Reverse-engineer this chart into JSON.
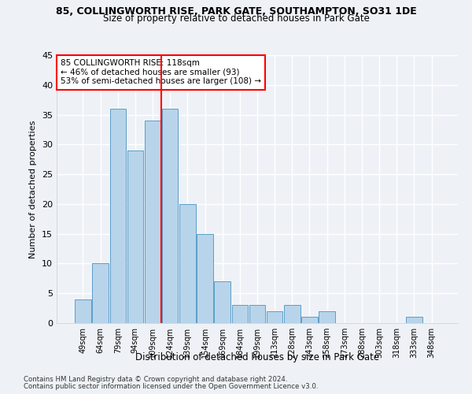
{
  "title1": "85, COLLINGWORTH RISE, PARK GATE, SOUTHAMPTON, SO31 1DE",
  "title2": "Size of property relative to detached houses in Park Gate",
  "xlabel": "Distribution of detached houses by size in Park Gate",
  "ylabel": "Number of detached properties",
  "categories": [
    "49sqm",
    "64sqm",
    "79sqm",
    "94sqm",
    "109sqm",
    "124sqm",
    "139sqm",
    "154sqm",
    "169sqm",
    "184sqm",
    "199sqm",
    "213sqm",
    "228sqm",
    "243sqm",
    "258sqm",
    "273sqm",
    "288sqm",
    "303sqm",
    "318sqm",
    "333sqm",
    "348sqm"
  ],
  "values": [
    4,
    10,
    36,
    29,
    34,
    36,
    20,
    15,
    7,
    3,
    3,
    2,
    3,
    1,
    2,
    0,
    0,
    0,
    0,
    1,
    0
  ],
  "bar_color": "#b8d4ea",
  "bar_edge_color": "#5b9ec9",
  "vline_color": "red",
  "annotation_line1": "85 COLLINGWORTH RISE: 118sqm",
  "annotation_line2": "← 46% of detached houses are smaller (93)",
  "annotation_line3": "53% of semi-detached houses are larger (108) →",
  "annotation_box_color": "white",
  "annotation_box_edge": "red",
  "ylim": [
    0,
    45
  ],
  "yticks": [
    0,
    5,
    10,
    15,
    20,
    25,
    30,
    35,
    40,
    45
  ],
  "background_color": "#eef2f7",
  "grid_color": "#ffffff",
  "footer1": "Contains HM Land Registry data © Crown copyright and database right 2024.",
  "footer2": "Contains public sector information licensed under the Open Government Licence v3.0."
}
